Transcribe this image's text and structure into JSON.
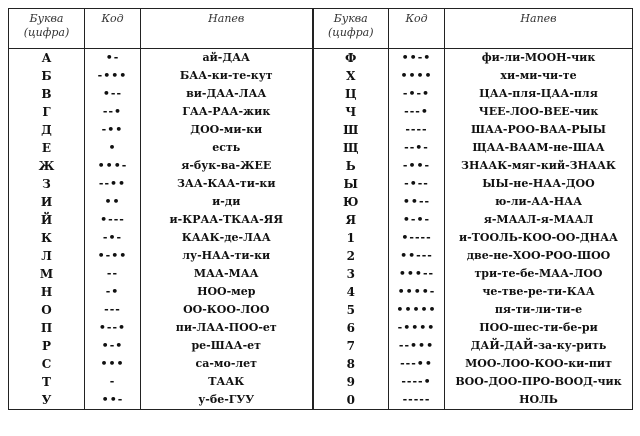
{
  "headers": {
    "letter": "Буква\n(цифра)",
    "code": "Код",
    "tune": "Напев"
  },
  "rows": [
    {
      "l1": "А",
      "c1": "•-",
      "t1": "ай-ДАА",
      "l2": "Ф",
      "c2": "••-•",
      "t2": "фи-ли-МООН-чик"
    },
    {
      "l1": "Б",
      "c1": "-•••",
      "t1": "БАА-ки-те-кут",
      "l2": "Х",
      "c2": "••••",
      "t2": "хи-ми-чи-те"
    },
    {
      "l1": "В",
      "c1": "•--",
      "t1": "ви-ДАА-ЛАА",
      "l2": "Ц",
      "c2": "-•-•",
      "t2": "ЦАА-пля-ЦАА-пля"
    },
    {
      "l1": "Г",
      "c1": "--•",
      "t1": "ГАА-РАА-жик",
      "l2": "Ч",
      "c2": "---•",
      "t2": "ЧЕЕ-ЛОО-ВЕЕ-чик"
    },
    {
      "l1": "Д",
      "c1": "-••",
      "t1": "ДОО-ми-ки",
      "l2": "Ш",
      "c2": "----",
      "t2": "ШАА-РОО-ВАА-РЫЫ"
    },
    {
      "l1": "Е",
      "c1": "•",
      "t1": "есть",
      "l2": "Щ",
      "c2": "--•-",
      "t2": "ЩАА-ВААМ-не-ШАА"
    },
    {
      "l1": "Ж",
      "c1": "•••-",
      "t1": "я-бук-ва-ЖЕЕ",
      "l2": "Ь",
      "c2": "-••-",
      "t2": "ЗНААК-мяг-кий-ЗНААК"
    },
    {
      "l1": "З",
      "c1": "--••",
      "t1": "ЗАА-КАА-ти-ки",
      "l2": "Ы",
      "c2": "-•--",
      "t2": "ЫЫ-не-НАА-ДОО"
    },
    {
      "l1": "И",
      "c1": "••",
      "t1": "и-ди",
      "l2": "Ю",
      "c2": "••--",
      "t2": "ю-ли-АА-НАА"
    },
    {
      "l1": "Й",
      "c1": "•---",
      "t1": "и-КРАА-ТКАА-ЯЯ",
      "l2": "Я",
      "c2": "•-•-",
      "t2": "я-МААЛ-я-МААЛ"
    },
    {
      "l1": "К",
      "c1": "-•-",
      "t1": "КААК-де-ЛАА",
      "l2": "1",
      "c2": "•----",
      "t2": "и-ТООЛЬ-КОО-ОО-ДНАА"
    },
    {
      "l1": "Л",
      "c1": "•-••",
      "t1": "лу-НАА-ти-ки",
      "l2": "2",
      "c2": "••---",
      "t2": "две-не-ХОО-РОО-ШОО"
    },
    {
      "l1": "М",
      "c1": "--",
      "t1": "МАА-МАА",
      "l2": "3",
      "c2": "•••--",
      "t2": "три-те-бе-МАА-ЛОО"
    },
    {
      "l1": "Н",
      "c1": "-•",
      "t1": "НОО-мер",
      "l2": "4",
      "c2": "••••-",
      "t2": "че-тве-ре-ти-КАА"
    },
    {
      "l1": "О",
      "c1": "---",
      "t1": "ОО-КОО-ЛОО",
      "l2": "5",
      "c2": "•••••",
      "t2": "пя-ти-ли-ти-е"
    },
    {
      "l1": "П",
      "c1": "•--•",
      "t1": "пи-ЛАА-ПОО-ет",
      "l2": "6",
      "c2": "-••••",
      "t2": "ПОО-шес-ти-бе-ри"
    },
    {
      "l1": "Р",
      "c1": "•-•",
      "t1": "ре-ШАА-ет",
      "l2": "7",
      "c2": "--•••",
      "t2": "ДАЙ-ДАЙ-за-ку-рить"
    },
    {
      "l1": "С",
      "c1": "•••",
      "t1": "са-мо-лет",
      "l2": "8",
      "c2": "---••",
      "t2": "МОО-ЛОО-КОО-ки-пит"
    },
    {
      "l1": "Т",
      "c1": "-",
      "t1": "ТААК",
      "l2": "9",
      "c2": "----•",
      "t2": "ВОО-ДОО-ПРО-ВООД-чик"
    },
    {
      "l1": "У",
      "c1": "••-",
      "t1": "у-бе-ГУУ",
      "l2": "0",
      "c2": "-----",
      "t2": "НОЛЬ"
    }
  ]
}
